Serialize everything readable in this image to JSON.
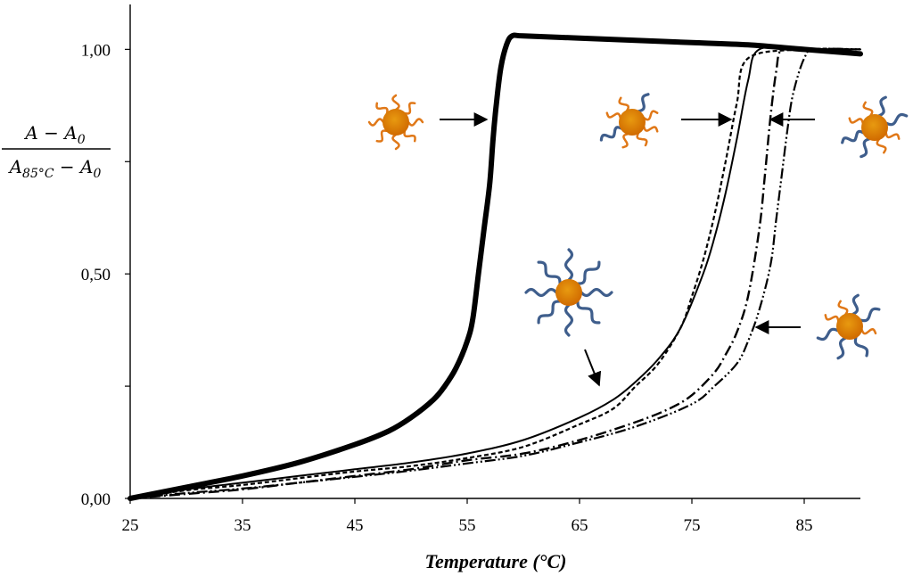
{
  "chart_data": {
    "type": "line",
    "title": "",
    "xlabel": "Temperature (°C)",
    "ylabel": "(A − A₀) / (A₈₅°C − A₀)",
    "ylabel_parts": {
      "num_a": "A",
      "num_op": " − ",
      "num_b": "A",
      "num_b_sub": "0",
      "den_a": "A",
      "den_a_sub": "85°C",
      "den_op": " − ",
      "den_b": "A",
      "den_b_sub": "0"
    },
    "xlim": [
      25,
      90
    ],
    "ylim": [
      0,
      1.1
    ],
    "x_ticks": [
      25,
      35,
      45,
      55,
      65,
      75,
      85
    ],
    "x_tick_labels": [
      "25",
      "35",
      "45",
      "55",
      "65",
      "75",
      "85"
    ],
    "y_ticks": [
      0,
      0.25,
      0.5,
      0.75,
      1.0
    ],
    "y_tick_labels": [
      "0,00",
      "",
      "0,50",
      "",
      "1,00"
    ],
    "grid": false,
    "legend": "none (nanoparticle icons with arrows)",
    "series": [
      {
        "style": "solid-thick",
        "x": [
          25,
          30,
          35,
          40,
          45,
          48,
          50,
          52,
          53,
          54,
          55,
          55.5,
          56,
          56.5,
          57,
          57.3,
          57.6,
          58,
          58.5,
          59,
          60,
          65,
          70,
          75,
          80,
          85,
          90
        ],
        "y": [
          0,
          0.025,
          0.05,
          0.08,
          0.12,
          0.15,
          0.18,
          0.22,
          0.25,
          0.29,
          0.35,
          0.4,
          0.5,
          0.6,
          0.7,
          0.8,
          0.88,
          0.96,
          1.01,
          1.03,
          1.03,
          1.025,
          1.02,
          1.015,
          1.01,
          1.0,
          0.99
        ]
      },
      {
        "style": "solid",
        "x": [
          25,
          30,
          35,
          40,
          45,
          50,
          55,
          60,
          65,
          68,
          70,
          72,
          74,
          76,
          77,
          78,
          79,
          80,
          81,
          85,
          90
        ],
        "y": [
          0,
          0.02,
          0.035,
          0.05,
          0.065,
          0.08,
          0.1,
          0.13,
          0.18,
          0.22,
          0.26,
          0.31,
          0.38,
          0.5,
          0.58,
          0.68,
          0.8,
          0.93,
          1.0,
          1.0,
          1.0
        ]
      },
      {
        "style": "short-dash",
        "x": [
          25,
          30,
          35,
          40,
          45,
          50,
          55,
          60,
          65,
          68,
          70,
          72,
          74,
          75,
          76,
          77,
          78,
          79,
          80,
          85,
          90
        ],
        "y": [
          0,
          0.018,
          0.03,
          0.045,
          0.06,
          0.072,
          0.09,
          0.115,
          0.165,
          0.2,
          0.25,
          0.3,
          0.38,
          0.45,
          0.53,
          0.63,
          0.75,
          0.88,
          0.98,
          1.0,
          1.0
        ]
      },
      {
        "style": "dash-dot",
        "x": [
          25,
          30,
          35,
          40,
          45,
          50,
          55,
          60,
          65,
          70,
          73,
          75,
          77,
          78,
          79,
          80,
          81,
          81.5,
          82,
          82.5,
          83,
          85,
          90
        ],
        "y": [
          0,
          0.01,
          0.02,
          0.035,
          0.05,
          0.065,
          0.085,
          0.1,
          0.13,
          0.17,
          0.2,
          0.23,
          0.28,
          0.32,
          0.37,
          0.45,
          0.6,
          0.72,
          0.85,
          0.95,
          1.0,
          1.0,
          1.0
        ]
      },
      {
        "style": "dash-dot-dot",
        "x": [
          25,
          30,
          35,
          40,
          45,
          50,
          55,
          60,
          65,
          70,
          75,
          77,
          79,
          80,
          81,
          82,
          82.5,
          83,
          83.5,
          84,
          85,
          86,
          90
        ],
        "y": [
          0,
          0.012,
          0.022,
          0.035,
          0.048,
          0.062,
          0.078,
          0.095,
          0.125,
          0.16,
          0.21,
          0.25,
          0.3,
          0.35,
          0.42,
          0.52,
          0.62,
          0.72,
          0.82,
          0.9,
          0.98,
          1.0,
          1.0
        ]
      }
    ]
  },
  "colors": {
    "axis": "#000000",
    "particle_core": "#e89a10",
    "particle_core_dark": "#d06a00",
    "ligand_orange": "#e07818",
    "ligand_blue": "#3f5e8c"
  },
  "annotations": [
    {
      "icon": "nanoparticle-orange-ligands-icon",
      "target": "solid-thick"
    },
    {
      "icon": "nanoparticle-mixed-ligands-icon",
      "target": "short-dash"
    },
    {
      "icon": "nanoparticle-mixed-ligands-icon",
      "target": "dash-dot-dot"
    },
    {
      "icon": "nanoparticle-blue-ligands-icon",
      "target": "solid"
    },
    {
      "icon": "nanoparticle-mixed-ligands-icon",
      "target": "dash-dot"
    }
  ]
}
